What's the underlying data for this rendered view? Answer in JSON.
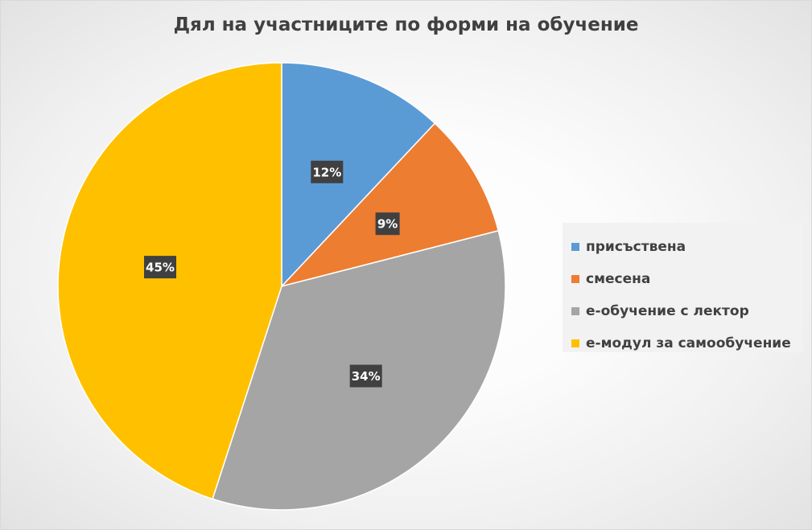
{
  "chart_data": {
    "type": "pie",
    "title": "Дял на участниците по форми на обучение",
    "categories": [
      "присъствена",
      "смесена",
      "е-обучение с лектор",
      "е-модул за самообучение"
    ],
    "values": [
      12,
      9,
      34,
      45
    ],
    "data_labels": [
      "12%",
      "9%",
      "34%",
      "45%"
    ],
    "colors": [
      "#5b9bd5",
      "#ed7d31",
      "#a5a5a5",
      "#ffc000"
    ],
    "start_angle_deg": 0,
    "direction": "clockwise",
    "legend_position": "right"
  }
}
